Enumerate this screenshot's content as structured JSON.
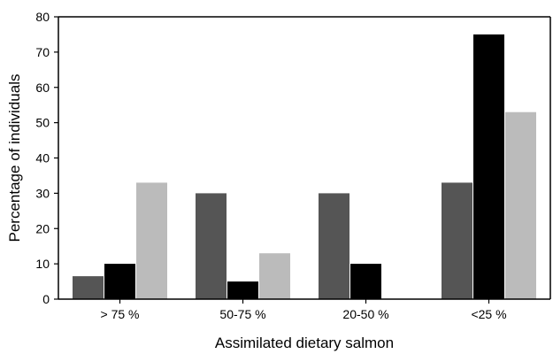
{
  "chart_data": {
    "type": "bar",
    "title": "",
    "xlabel": "Assimilated dietary salmon",
    "ylabel": "Percentage of individuals",
    "categories": [
      "> 75 %",
      "50-75 %",
      "20-50 %",
      "<25 %"
    ],
    "series": [
      {
        "values": [
          6.5,
          30,
          30,
          33
        ],
        "color": "#555555"
      },
      {
        "values": [
          10,
          5,
          10,
          75
        ],
        "color": "#000000"
      },
      {
        "values": [
          33,
          13,
          0,
          53
        ],
        "color": "#bbbbbb"
      }
    ],
    "ylim": [
      0,
      80
    ],
    "yticks": [
      0,
      10,
      20,
      30,
      40,
      50,
      60,
      70,
      80
    ],
    "grid": false,
    "legend": "none"
  }
}
